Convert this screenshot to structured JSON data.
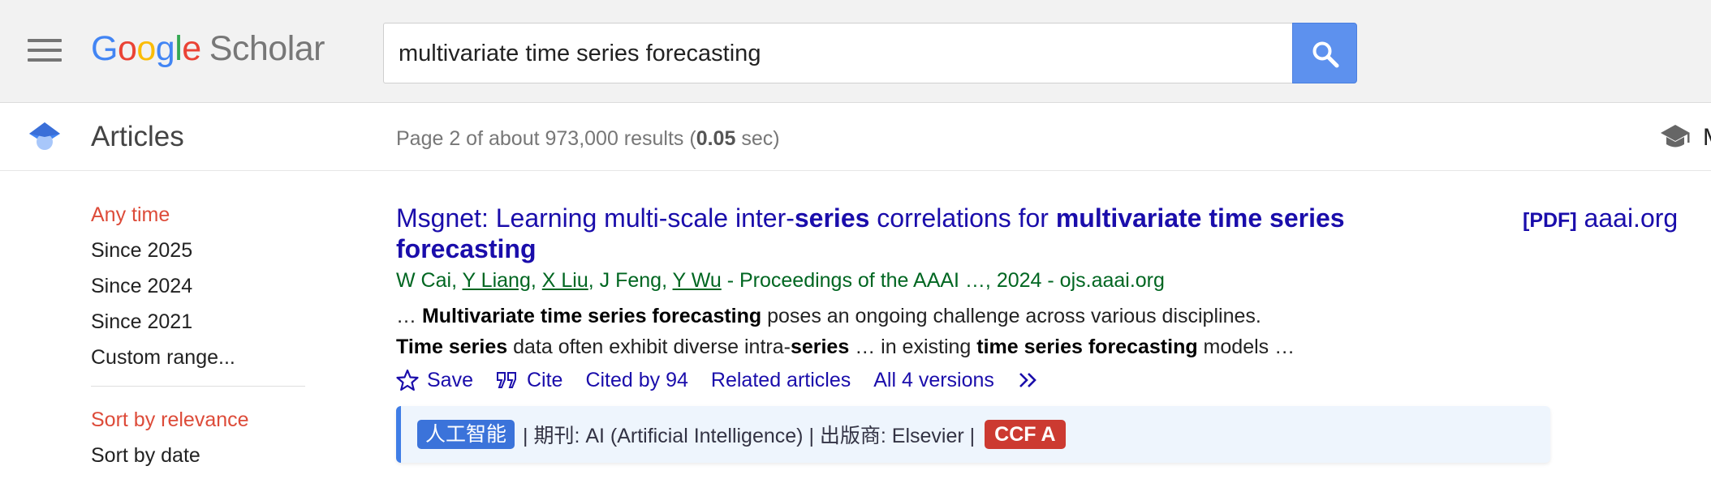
{
  "header": {
    "logo_letters": [
      "G",
      "o",
      "o",
      "g",
      "l",
      "e"
    ],
    "logo_scholar": "Scholar",
    "search_value": "multivariate time series forecasting"
  },
  "subheader": {
    "section_title": "Articles",
    "results_prefix": "Page 2 of about 973,000 results (",
    "results_time": "0.05",
    "results_suffix": " sec)",
    "right_cut_text": "M"
  },
  "sidebar": {
    "time_filters": [
      "Any time",
      "Since 2025",
      "Since 2024",
      "Since 2021",
      "Custom range..."
    ],
    "sort_options": [
      "Sort by relevance",
      "Sort by date"
    ]
  },
  "result": {
    "title": {
      "t1": "Msgnet: Learning multi-scale inter-",
      "t2": "series",
      "t3": " correlations for ",
      "t4": "multivariate time series forecasting"
    },
    "pdf": {
      "tag": "[PDF]",
      "domain": "aaai.org"
    },
    "authors": {
      "a1": "W Cai",
      "a2": "Y Liang",
      "a3": "X Liu",
      "a4": "J Feng",
      "a5": "Y Wu",
      "sep": ", ",
      "venue": " - Proceedings of the AAAI …, 2024 - ojs.aaai.org"
    },
    "snippet": {
      "s1": "… ",
      "s2": "Multivariate time series forecasting",
      "s3": " poses an ongoing challenge across various disciplines.",
      "s4": "Time series",
      "s5": " data often exhibit diverse intra-",
      "s6": "series",
      "s7": " … in existing ",
      "s8": "time series forecasting",
      "s9": " models …"
    },
    "actions": {
      "save": "Save",
      "cite": "Cite",
      "cited_by": "Cited by 94",
      "related": "Related articles",
      "versions": "All 4 versions"
    },
    "badge": {
      "category": "人工智能",
      "info": " | 期刊: AI (Artificial Intelligence) | 出版商: Elsevier | ",
      "rank": "CCF A"
    }
  },
  "colors": {
    "link": "#1a0dab",
    "green": "#006621",
    "active_filter": "#dd4b39",
    "search_button": "#5d91ee",
    "ccf_red": "#cc3a31"
  },
  "icons": [
    "menu-icon",
    "search-icon",
    "scholar-cap-icon",
    "star-icon",
    "quote-icon",
    "double-chevron-icon"
  ]
}
